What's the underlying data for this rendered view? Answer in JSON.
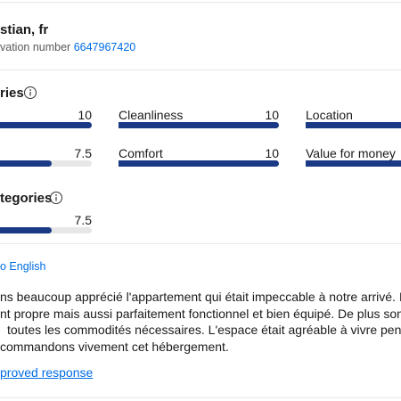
{
  "header": {
    "name": "stian, fr",
    "reservation_label": "vation number",
    "reservation_number": "6647967420"
  },
  "categories": {
    "title": "ries",
    "xlim": [
      0,
      10
    ],
    "items": [
      {
        "name": null,
        "value": 10
      },
      {
        "name": "Cleanliness",
        "value": 10
      },
      {
        "name": "Location",
        "value": 10
      },
      {
        "name": null,
        "value": 7.5
      },
      {
        "name": "Comfort",
        "value": 10
      },
      {
        "name": "Value for money",
        "value": 10
      }
    ]
  },
  "subcategories": {
    "title": "tegories",
    "xlim": [
      0,
      10
    ],
    "items": [
      {
        "name": null,
        "value": 7.5
      }
    ]
  },
  "translate_link": "o English",
  "review": {
    "lines": [
      "ns beaucoup apprécié l'appartement qui était impeccable à notre arrivé. Il était",
      "nt propre mais aussi parfaitement fonctionnel et bien équipé. De plus son empla",
      "toutes les commodités nécessaires. L'espace était agréable à vivre pendant n",
      "commandons vivement cet hébergement."
    ]
  },
  "response_link": "proved response"
}
